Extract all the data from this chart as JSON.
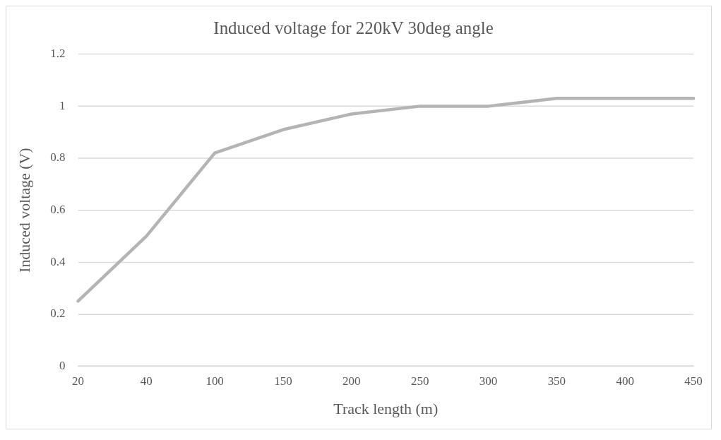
{
  "chart_data": {
    "type": "line",
    "title": "Induced voltage for 220kV 30deg angle",
    "xlabel": "Track length (m)",
    "ylabel": "Induced voltage (V)",
    "categories": [
      "20",
      "40",
      "100",
      "150",
      "200",
      "250",
      "300",
      "350",
      "400",
      "450"
    ],
    "series": [
      {
        "color": "#b4b4b4",
        "values": [
          0.25,
          0.5,
          0.82,
          0.91,
          0.97,
          1.0,
          1.0,
          1.03,
          1.03,
          1.03
        ]
      }
    ],
    "ylim": [
      0,
      1.2
    ],
    "yticks": [
      0,
      0.2,
      0.4,
      0.6,
      0.8,
      1,
      1.2
    ],
    "grid": "y",
    "legend": false,
    "marker": "none",
    "line_style": "solid"
  }
}
